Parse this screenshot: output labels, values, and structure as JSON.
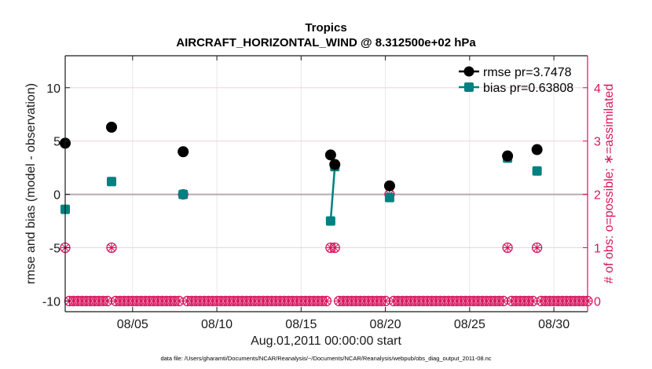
{
  "chart_data": {
    "type": "scatter",
    "title": "Tropics",
    "subtitle": "AIRCRAFT_HORIZONTAL_WIND @ 8.312500e+02 hPa",
    "xlabel": "Aug.01,2011 00:00:00 start",
    "ylabel": "rmse and bias (model - observation)",
    "ylabel_right": "# of obs: o=possible; ∗=assimilated",
    "footnote": "data file: /Users/gharamti/Documents/NCAR/Reanalysis/~/Documents/NCAR/Reanalysis/webpub/obs_diag_output_2011-08.nc",
    "xlim_days_since_start": [
      0,
      31
    ],
    "ylim": [
      -11,
      13
    ],
    "ylim_right": [
      -0.2,
      4.6
    ],
    "x_ticks": [
      {
        "day": 4,
        "label": "08/05"
      },
      {
        "day": 9,
        "label": "08/10"
      },
      {
        "day": 14,
        "label": "08/15"
      },
      {
        "day": 19,
        "label": "08/20"
      },
      {
        "day": 24,
        "label": "08/25"
      },
      {
        "day": 29,
        "label": "08/30"
      }
    ],
    "y_ticks": [
      {
        "value": 10,
        "label": "10"
      },
      {
        "value": 5,
        "label": "5"
      },
      {
        "value": 0,
        "label": "0"
      },
      {
        "value": -5,
        "label": "-5"
      },
      {
        "value": -10,
        "label": "-10"
      }
    ],
    "y_ticks_right": [
      {
        "value": 4,
        "label": "4"
      },
      {
        "value": 3,
        "label": "3"
      },
      {
        "value": 2,
        "label": "2"
      },
      {
        "value": 1,
        "label": "1"
      },
      {
        "value": 0,
        "label": "0"
      }
    ],
    "grid": true,
    "legend_position": "top-right",
    "series": [
      {
        "name": "rmse",
        "legend_label": "rmse pr=3.7478",
        "color": "#000000",
        "marker": "circle",
        "points": [
          {
            "x": 0.0,
            "y": 4.8
          },
          {
            "x": 2.75,
            "y": 6.3
          },
          {
            "x": 7.0,
            "y": 4.0
          },
          {
            "x": 15.75,
            "y": 3.7
          },
          {
            "x": 16.0,
            "y": 2.8
          },
          {
            "x": 19.25,
            "y": 0.8
          },
          {
            "x": 26.25,
            "y": 3.6
          },
          {
            "x": 28.0,
            "y": 4.2
          }
        ]
      },
      {
        "name": "bias",
        "legend_label": "bias pr=0.63808",
        "color": "#008080",
        "marker": "square",
        "connected_segments": [
          [
            15.75,
            16.0
          ]
        ],
        "points": [
          {
            "x": 0.0,
            "y": -1.4
          },
          {
            "x": 2.75,
            "y": 1.2
          },
          {
            "x": 7.0,
            "y": 0.0
          },
          {
            "x": 15.75,
            "y": -2.5
          },
          {
            "x": 16.0,
            "y": 2.6
          },
          {
            "x": 19.25,
            "y": -0.3
          },
          {
            "x": 26.25,
            "y": 3.4
          },
          {
            "x": 28.0,
            "y": 2.2
          }
        ]
      },
      {
        "name": "obs count (possible & assimilated)",
        "color": "#d6165e",
        "marker": "circle-star",
        "axis": "right",
        "nonzero_points": [
          {
            "x": 0.0,
            "count": 1
          },
          {
            "x": 2.75,
            "count": 1
          },
          {
            "x": 7.0,
            "count": 2
          },
          {
            "x": 15.75,
            "count": 1
          },
          {
            "x": 16.0,
            "count": 1
          },
          {
            "x": 19.25,
            "count": 2
          },
          {
            "x": 26.25,
            "count": 1
          },
          {
            "x": 28.0,
            "count": 1
          }
        ],
        "zero_count_interval_days": 0.25,
        "zero_count_range": [
          0,
          31
        ]
      }
    ],
    "zero_line": {
      "value": 0,
      "color": "#b8a9ad"
    }
  },
  "colors": {
    "axis": "#1a1a1a",
    "right_axis": "#d6165e",
    "grid": "#e8e8e8",
    "grid_pink": "#f3cfdc"
  }
}
